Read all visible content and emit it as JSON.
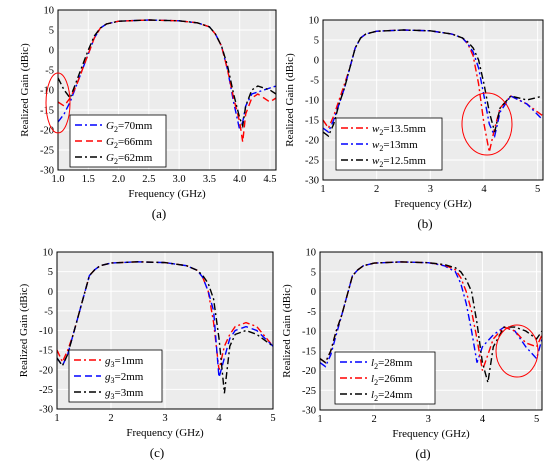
{
  "chart_data": [
    {
      "type": "line",
      "caption": "(a)",
      "xlabel": "Frequency (GHz)",
      "ylabel": "Realized Gain (dBic)",
      "xlim": [
        1.0,
        4.6
      ],
      "ylim": [
        -30,
        10
      ],
      "xticks": [
        "1.0",
        "1.5",
        "2.0",
        "2.5",
        "3.0",
        "3.5",
        "4.0",
        "4.5"
      ],
      "yticks": [
        "-30",
        "-25",
        "-20",
        "-15",
        "-10",
        "-5",
        "0",
        "5",
        "10"
      ],
      "legend_position": "bottom-left",
      "grid": true,
      "series": [
        {
          "name": "G₂=70mm",
          "var": "G",
          "sub": "2",
          "val": "=70mm",
          "color": "#0000ff",
          "dash": "dashdot",
          "x": [
            1.0,
            1.1,
            1.2,
            1.3,
            1.4,
            1.5,
            1.6,
            1.7,
            1.8,
            2.0,
            2.5,
            3.0,
            3.3,
            3.5,
            3.6,
            3.7,
            3.8,
            3.9,
            4.0,
            4.05,
            4.1,
            4.2,
            4.3,
            4.4,
            4.5,
            4.6
          ],
          "y": [
            -18,
            -16,
            -13,
            -9,
            -5,
            -1,
            3,
            5.5,
            6.5,
            7.2,
            7.5,
            7.3,
            6.8,
            5.8,
            4,
            1,
            -5,
            -13,
            -20,
            -18,
            -14,
            -11,
            -10.5,
            -10,
            -9.5,
            -9
          ]
        },
        {
          "name": "G₂=66mm",
          "var": "G",
          "sub": "2",
          "val": "=66mm",
          "color": "#ff0000",
          "dash": "dash",
          "x": [
            1.0,
            1.1,
            1.2,
            1.3,
            1.4,
            1.5,
            1.6,
            1.7,
            1.8,
            2.0,
            2.5,
            3.0,
            3.3,
            3.5,
            3.6,
            3.7,
            3.8,
            3.9,
            4.0,
            4.05,
            4.1,
            4.2,
            4.3,
            4.4,
            4.5,
            4.6
          ],
          "y": [
            -13,
            -14,
            -12,
            -9,
            -5,
            -1,
            3,
            5.5,
            6.5,
            7.2,
            7.5,
            7.3,
            6.8,
            5.8,
            4,
            1,
            -5,
            -12,
            -18,
            -23,
            -16,
            -12,
            -11,
            -12,
            -13,
            -12
          ]
        },
        {
          "name": "G₂=62mm",
          "var": "G",
          "sub": "2",
          "val": "=62mm",
          "color": "#000000",
          "dash": "dashdot",
          "x": [
            1.0,
            1.1,
            1.2,
            1.3,
            1.4,
            1.5,
            1.6,
            1.7,
            1.8,
            2.0,
            2.5,
            3.0,
            3.3,
            3.5,
            3.6,
            3.7,
            3.8,
            3.9,
            4.0,
            4.05,
            4.1,
            4.2,
            4.3,
            4.4,
            4.5,
            4.6
          ],
          "y": [
            -7,
            -10,
            -12,
            -8,
            -4,
            0,
            3.5,
            5.5,
            6.5,
            7.2,
            7.5,
            7.3,
            6.8,
            5.8,
            4,
            1,
            -4,
            -11,
            -17,
            -19,
            -14,
            -10,
            -9,
            -9.5,
            -10,
            -11
          ]
        }
      ]
    },
    {
      "type": "line",
      "caption": "(b)",
      "xlabel": "Frequency (GHz)",
      "ylabel": "Realized Gain (dBic)",
      "xlim": [
        1,
        5.1
      ],
      "ylim": [
        -30,
        10
      ],
      "xticks": [
        "1",
        "2",
        "3",
        "4",
        "5"
      ],
      "yticks": [
        "-30",
        "-25",
        "-20",
        "-15",
        "-10",
        "-5",
        "0",
        "5",
        "10"
      ],
      "legend_position": "bottom-left",
      "grid": true,
      "series": [
        {
          "name": "w₂=13.5mm",
          "var": "w",
          "sub": "2",
          "val": "=13.5mm",
          "color": "#ff0000",
          "dash": "dashdot",
          "x": [
            1.0,
            1.1,
            1.2,
            1.3,
            1.4,
            1.5,
            1.6,
            1.7,
            1.8,
            2.0,
            2.5,
            3.0,
            3.4,
            3.6,
            3.7,
            3.8,
            3.9,
            4.0,
            4.1,
            4.2,
            4.3,
            4.5,
            4.8,
            5.1
          ],
          "y": [
            -15,
            -17,
            -14,
            -10,
            -6,
            -2,
            3,
            5.5,
            6.5,
            7.2,
            7.5,
            7.3,
            6.5,
            5.5,
            4,
            1,
            -6,
            -16,
            -23,
            -17,
            -12,
            -9,
            -11,
            -14
          ]
        },
        {
          "name": "w₂=13mm",
          "var": "w",
          "sub": "2",
          "val": "=13mm",
          "color": "#0000ff",
          "dash": "dashdot",
          "x": [
            1.0,
            1.1,
            1.2,
            1.3,
            1.4,
            1.5,
            1.6,
            1.7,
            1.8,
            2.0,
            2.5,
            3.0,
            3.4,
            3.6,
            3.7,
            3.8,
            3.9,
            4.0,
            4.1,
            4.2,
            4.3,
            4.5,
            4.8,
            5.1
          ],
          "y": [
            -17,
            -18,
            -15,
            -11,
            -7,
            -2,
            3,
            5.5,
            6.5,
            7.2,
            7.5,
            7.3,
            6.5,
            5.5,
            4,
            2,
            -2,
            -9,
            -16,
            -19,
            -13,
            -9,
            -11,
            -15
          ]
        },
        {
          "name": "w₂=12.5mm",
          "var": "w",
          "sub": "2",
          "val": "=12.5mm",
          "color": "#000000",
          "dash": "dashdot",
          "x": [
            1.0,
            1.1,
            1.2,
            1.3,
            1.4,
            1.5,
            1.6,
            1.7,
            1.8,
            2.0,
            2.5,
            3.0,
            3.4,
            3.6,
            3.7,
            3.8,
            3.9,
            4.0,
            4.1,
            4.2,
            4.3,
            4.5,
            4.8,
            5.1
          ],
          "y": [
            -18,
            -19,
            -16,
            -11,
            -7,
            -2,
            3,
            5.5,
            6.5,
            7.2,
            7.5,
            7.3,
            6.5,
            5.5,
            4.5,
            3,
            0,
            -6,
            -13,
            -18,
            -12,
            -9,
            -10,
            -9
          ]
        }
      ]
    },
    {
      "type": "line",
      "caption": "(c)",
      "xlabel": "Frequency (GHz)",
      "ylabel": "Realized Gain (dBic)",
      "xlim": [
        1,
        5
      ],
      "ylim": [
        -30,
        10
      ],
      "xticks": [
        "1",
        "2",
        "3",
        "4",
        "5"
      ],
      "yticks": [
        "-30",
        "-25",
        "-20",
        "-15",
        "-10",
        "-5",
        "0",
        "5",
        "10"
      ],
      "legend_position": "bottom-left",
      "grid": true,
      "series": [
        {
          "name": "g₃=1mm",
          "var": "g",
          "sub": "3",
          "val": "=1mm",
          "color": "#ff0000",
          "dash": "dashdot",
          "x": [
            1.0,
            1.1,
            1.2,
            1.3,
            1.4,
            1.5,
            1.6,
            1.7,
            1.8,
            2.0,
            2.5,
            3.0,
            3.4,
            3.6,
            3.7,
            3.8,
            3.9,
            4.0,
            4.1,
            4.2,
            4.3,
            4.5,
            4.7,
            5.0
          ],
          "y": [
            -15,
            -18,
            -15,
            -11,
            -6,
            -1,
            4,
            5.5,
            6.5,
            7.2,
            7.5,
            7.3,
            6.5,
            5.3,
            3.5,
            0,
            -8,
            -20,
            -14,
            -11,
            -9,
            -8,
            -9,
            -14
          ]
        },
        {
          "name": "g₃=2mm",
          "var": "g",
          "sub": "3",
          "val": "=2mm",
          "color": "#0000ff",
          "dash": "dash",
          "x": [
            1.0,
            1.1,
            1.2,
            1.3,
            1.4,
            1.5,
            1.6,
            1.7,
            1.8,
            2.0,
            2.5,
            3.0,
            3.4,
            3.6,
            3.7,
            3.8,
            3.9,
            4.0,
            4.1,
            4.2,
            4.3,
            4.5,
            4.7,
            5.0
          ],
          "y": [
            -17,
            -19,
            -16,
            -11,
            -6,
            -1,
            4,
            5.5,
            6.5,
            7.2,
            7.5,
            7.3,
            6.5,
            5.3,
            3.5,
            0,
            -5,
            -22,
            -17,
            -12,
            -10,
            -9,
            -10,
            -14
          ]
        },
        {
          "name": "g₃=3mm",
          "var": "g",
          "sub": "3",
          "val": "=3mm",
          "color": "#000000",
          "dash": "dashdot",
          "x": [
            1.0,
            1.1,
            1.2,
            1.3,
            1.4,
            1.5,
            1.6,
            1.7,
            1.8,
            2.0,
            2.5,
            3.0,
            3.4,
            3.6,
            3.7,
            3.8,
            3.9,
            4.0,
            4.1,
            4.2,
            4.3,
            4.5,
            4.7,
            5.0
          ],
          "y": [
            -17,
            -19,
            -16,
            -11,
            -6,
            -1,
            4,
            5.5,
            6.5,
            7.2,
            7.5,
            7.3,
            6.5,
            5.3,
            4,
            2,
            -2,
            -12,
            -26,
            -14,
            -11,
            -10,
            -11,
            -14
          ]
        }
      ]
    },
    {
      "type": "line",
      "caption": "(d)",
      "xlabel": "Frequency (GHz)",
      "ylabel": "Realized Gain (dBic)",
      "xlim": [
        1,
        5.1
      ],
      "ylim": [
        -30,
        10
      ],
      "xticks": [
        "1",
        "2",
        "3",
        "4",
        "5"
      ],
      "yticks": [
        "-30",
        "-25",
        "-20",
        "-15",
        "-10",
        "-5",
        "0",
        "5",
        "10"
      ],
      "legend_position": "bottom-left",
      "grid": true,
      "series": [
        {
          "name": "l₂=28mm",
          "var": "l",
          "sub": "2",
          "val": "=28mm",
          "color": "#0000ff",
          "dash": "dashdot",
          "x": [
            1.0,
            1.1,
            1.2,
            1.3,
            1.4,
            1.5,
            1.6,
            1.7,
            1.8,
            2.0,
            2.5,
            3.0,
            3.3,
            3.5,
            3.6,
            3.7,
            3.8,
            3.9,
            4.0,
            4.2,
            4.4,
            4.6,
            4.8,
            5.0,
            5.1
          ],
          "y": [
            -18,
            -19,
            -16,
            -11,
            -6,
            -1,
            4,
            5.5,
            6.5,
            7.2,
            7.5,
            7.3,
            6.5,
            5,
            2,
            -3,
            -10,
            -18,
            -14,
            -11,
            -9,
            -10,
            -14,
            -17,
            -12
          ]
        },
        {
          "name": "l₂=26mm",
          "var": "l",
          "sub": "2",
          "val": "=26mm",
          "color": "#ff0000",
          "dash": "dashdot",
          "x": [
            1.0,
            1.1,
            1.2,
            1.3,
            1.4,
            1.5,
            1.6,
            1.7,
            1.8,
            2.0,
            2.5,
            3.0,
            3.3,
            3.5,
            3.6,
            3.7,
            3.8,
            3.9,
            4.0,
            4.1,
            4.2,
            4.4,
            4.6,
            4.8,
            5.0,
            5.1
          ],
          "y": [
            -17,
            -18,
            -15,
            -10,
            -6,
            -1,
            4,
            5.5,
            6.5,
            7.2,
            7.5,
            7.3,
            6.7,
            5.5,
            3.5,
            0,
            -5,
            -12,
            -20,
            -16,
            -12,
            -9,
            -10,
            -13,
            -14,
            -11
          ]
        },
        {
          "name": "l₂=24mm",
          "var": "l",
          "sub": "2",
          "val": "=24mm",
          "color": "#000000",
          "dash": "dashdot",
          "x": [
            1.0,
            1.1,
            1.2,
            1.3,
            1.4,
            1.5,
            1.6,
            1.7,
            1.8,
            2.0,
            2.5,
            3.0,
            3.3,
            3.5,
            3.6,
            3.7,
            3.8,
            3.9,
            4.0,
            4.1,
            4.2,
            4.4,
            4.6,
            4.8,
            5.0,
            5.1
          ],
          "y": [
            -17,
            -18,
            -15,
            -10,
            -6,
            -1,
            4,
            5.5,
            6.5,
            7.2,
            7.5,
            7.3,
            6.8,
            6,
            5,
            3,
            0,
            -8,
            -18,
            -23,
            -14,
            -9,
            -9,
            -10,
            -12,
            -10
          ]
        }
      ]
    }
  ]
}
